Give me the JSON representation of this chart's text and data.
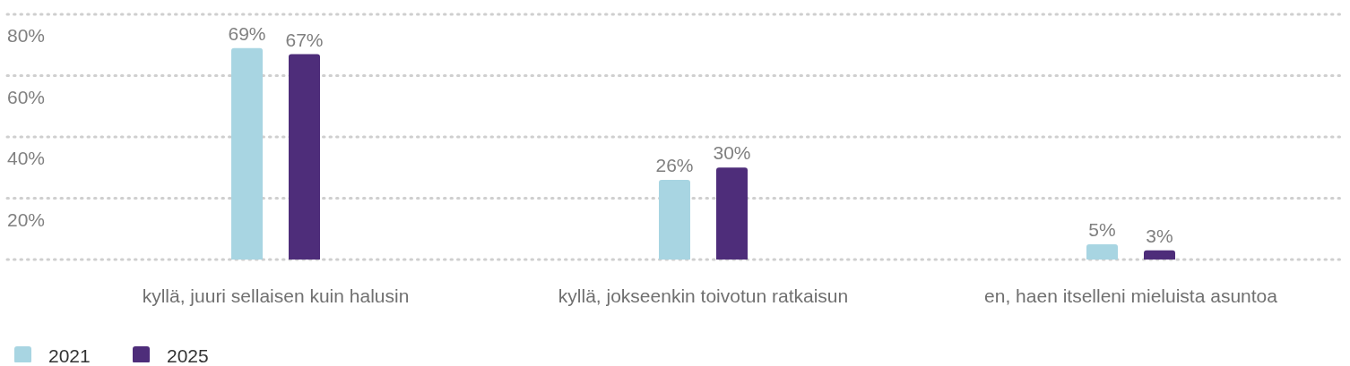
{
  "chart_data": {
    "type": "bar",
    "categories": [
      "kyllä, juuri sellaisen kuin halusin",
      "kyllä, jokseenkin toivotun ratkaisun",
      "en, haen itselleni mieluista asuntoa"
    ],
    "series": [
      {
        "name": "2021",
        "color": "#a8d5e2",
        "values": [
          69,
          26,
          5
        ],
        "value_labels": [
          "69%",
          "26%",
          "5%"
        ]
      },
      {
        "name": "2025",
        "color": "#4e2d7a",
        "values": [
          67,
          30,
          3
        ],
        "value_labels": [
          "67%",
          "30%",
          "3%"
        ]
      }
    ],
    "ylim": [
      0,
      80
    ],
    "yticks": [
      {
        "value": 0,
        "label": null
      },
      {
        "value": 20,
        "label": "20%"
      },
      {
        "value": 40,
        "label": "40%"
      },
      {
        "value": 60,
        "label": "60%"
      },
      {
        "value": 80,
        "label": "80%"
      }
    ],
    "grid": "y",
    "legend": "bottom left"
  }
}
